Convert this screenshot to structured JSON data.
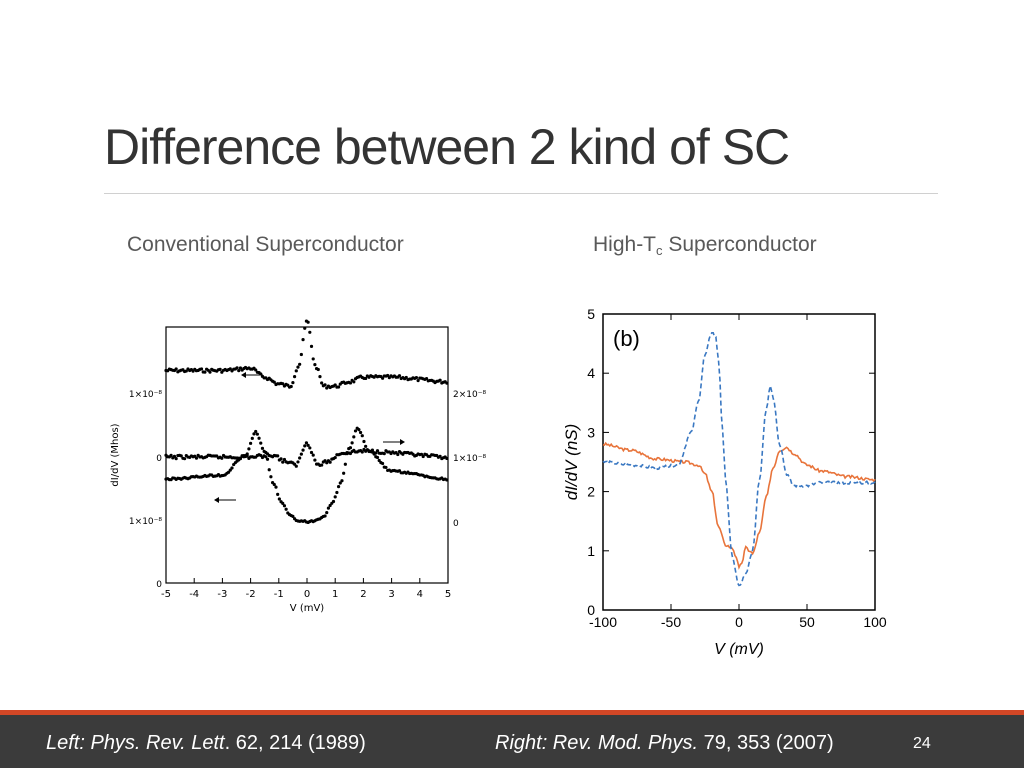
{
  "slide": {
    "title": "Difference between 2 kind of SC",
    "left_label": "Conventional Superconductor",
    "right_label_prefix": "High-T",
    "right_label_sub": "c",
    "right_label_suffix": " Superconductor",
    "slide_number": "24"
  },
  "footer": {
    "left_ref_italic": "Left: Phys. Rev. Lett",
    "left_ref_plain": ". 62, 214 (1989)",
    "right_ref_italic": "Right: Rev. Mod. Phys.",
    "right_ref_plain": " 79, 353 (2007)",
    "accent_color": "#d24726",
    "bar_color": "#3b3b3b"
  },
  "chart_data": [
    {
      "type": "scatter",
      "xlabel": "V (mV)",
      "ylabel": "dI/dV (Mhos)",
      "xlim": [
        -5,
        5
      ],
      "xticks": [
        "-5",
        "-4",
        "-3",
        "-2",
        "-1",
        "0",
        "1",
        "2",
        "3",
        "4",
        "5"
      ],
      "left_tick_labels": [
        "1×10⁻⁸",
        "0",
        "1×10⁻⁸",
        "0"
      ],
      "right_tick_labels": [
        "2×10⁻⁸",
        "1×10⁻⁸",
        "0"
      ],
      "series": [
        {
          "x": [
            -5,
            -3,
            -2,
            -1.5,
            -1,
            -0.6,
            -0.3,
            0,
            0.3,
            0.6,
            1,
            1.5,
            2,
            3,
            5
          ],
          "y": [
            0.5,
            0.5,
            0.55,
            0.35,
            0.2,
            0.15,
            0.6,
            1.6,
            0.6,
            0.15,
            0.15,
            0.25,
            0.35,
            0.35,
            0.25
          ]
        },
        {
          "x": [
            -5,
            -2,
            -1.2,
            -0.8,
            -0.4,
            0,
            0.4,
            0.8,
            1.2,
            2,
            5
          ],
          "y": [
            0,
            0,
            0.05,
            -0.1,
            -0.2,
            0.35,
            -0.2,
            -0.1,
            0.1,
            0.15,
            0
          ]
        },
        {
          "x": [
            -5,
            -3,
            -2.2,
            -1.8,
            -1.5,
            -1.2,
            -0.9,
            -0.6,
            -0.3,
            0,
            0.3,
            0.6,
            0.9,
            1.2,
            1.5,
            1.8,
            2.2,
            3,
            5
          ],
          "y": [
            0.55,
            0.6,
            0.85,
            1.15,
            0.9,
            0.5,
            0.25,
            0.08,
            0.02,
            0.0,
            0.02,
            0.08,
            0.25,
            0.5,
            0.95,
            1.2,
            0.9,
            0.65,
            0.55
          ]
        }
      ]
    },
    {
      "type": "line",
      "panel_label": "(b)",
      "xlabel": "V (mV)",
      "ylabel": "dI/dV (nS)",
      "xlim": [
        -100,
        100
      ],
      "ylim": [
        0,
        5
      ],
      "xticks": [
        "-100",
        "-50",
        "0",
        "50",
        "100"
      ],
      "yticks": [
        "0",
        "1",
        "2",
        "3",
        "4",
        "5"
      ],
      "series": [
        {
          "color": "#e8743b",
          "style": "solid",
          "x": [
            -100,
            -80,
            -60,
            -40,
            -30,
            -25,
            -20,
            -15,
            -10,
            -5,
            -2,
            0,
            2,
            5,
            8,
            10,
            15,
            20,
            25,
            30,
            35,
            40,
            50,
            60,
            80,
            100
          ],
          "y": [
            2.8,
            2.7,
            2.55,
            2.5,
            2.45,
            2.3,
            2.0,
            1.4,
            1.1,
            1.05,
            0.9,
            0.7,
            0.8,
            1.05,
            1.0,
            0.95,
            1.3,
            1.9,
            2.4,
            2.7,
            2.75,
            2.65,
            2.45,
            2.35,
            2.25,
            2.2
          ]
        },
        {
          "color": "#3a78c2",
          "style": "dashed",
          "x": [
            -100,
            -80,
            -60,
            -45,
            -35,
            -30,
            -25,
            -20,
            -17,
            -15,
            -12,
            -10,
            -5,
            0,
            5,
            10,
            15,
            20,
            23,
            25,
            30,
            35,
            40,
            50,
            60,
            80,
            100
          ],
          "y": [
            2.5,
            2.45,
            2.4,
            2.45,
            3.0,
            3.5,
            4.3,
            4.7,
            4.6,
            4.2,
            3.0,
            2.2,
            0.9,
            0.4,
            0.6,
            1.0,
            2.2,
            3.4,
            3.8,
            3.6,
            2.8,
            2.3,
            2.1,
            2.1,
            2.15,
            2.15,
            2.15
          ]
        }
      ]
    }
  ]
}
